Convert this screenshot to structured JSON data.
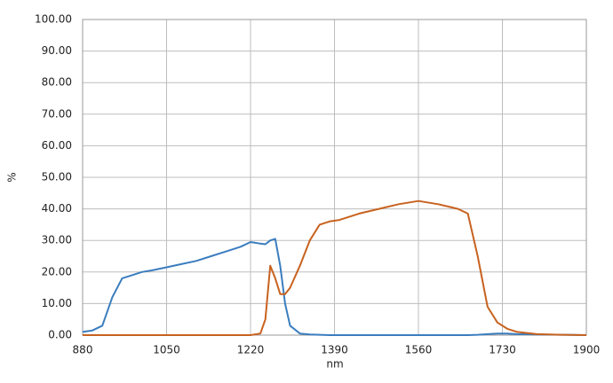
{
  "chart_data": {
    "type": "line",
    "x_label": "nm",
    "y_label": "%",
    "x": [
      880,
      900,
      920,
      940,
      960,
      980,
      1000,
      1020,
      1050,
      1080,
      1110,
      1140,
      1170,
      1200,
      1220,
      1240,
      1250,
      1260,
      1270,
      1280,
      1290,
      1300,
      1320,
      1340,
      1360,
      1380,
      1400,
      1440,
      1480,
      1520,
      1560,
      1600,
      1640,
      1660,
      1680,
      1700,
      1720,
      1740,
      1760,
      1800,
      1850,
      1900
    ],
    "series": [
      {
        "color": "#3b7dbf",
        "values": [
          1,
          1.5,
          3,
          12,
          18,
          19,
          20,
          20.5,
          21.5,
          22.5,
          23.5,
          25,
          26.5,
          28,
          29.5,
          29,
          28.8,
          30,
          30.5,
          22,
          10,
          3,
          0.5,
          0.2,
          0.1,
          0,
          0,
          0,
          0,
          0,
          0,
          0,
          0,
          0,
          0.1,
          0.3,
          0.5,
          0.5,
          0.3,
          0.2,
          0.1,
          0
        ]
      },
      {
        "color": "#c8621f",
        "values": [
          0,
          0,
          0,
          0,
          0,
          0,
          0,
          0,
          0,
          0,
          0,
          0,
          0,
          0,
          0,
          0.5,
          5,
          22,
          18,
          13,
          13,
          15,
          22,
          30,
          35,
          36,
          36.5,
          38.5,
          40,
          41.5,
          42.5,
          41.5,
          40,
          38.5,
          25,
          9,
          4,
          2,
          1,
          0.3,
          0.1,
          0
        ]
      }
    ],
    "xlim": [
      880,
      1900
    ],
    "xticks": [
      880,
      1050,
      1220,
      1390,
      1560,
      1730,
      1900
    ],
    "ylim": [
      0,
      100
    ],
    "yticks": [
      {
        "value": 0,
        "label": "0.00"
      },
      {
        "value": 10,
        "label": "10.00"
      },
      {
        "value": 20,
        "label": "20.00"
      },
      {
        "value": 30,
        "label": "30.00"
      },
      {
        "value": 40,
        "label": "40.00"
      },
      {
        "value": 50,
        "label": "50.00"
      },
      {
        "value": 60,
        "label": "60.00"
      },
      {
        "value": 70,
        "label": "70.00"
      },
      {
        "value": 80,
        "label": "80.00"
      },
      {
        "value": 90,
        "label": "90.00"
      },
      {
        "value": 100,
        "label": "100.00"
      }
    ],
    "grid": true
  }
}
